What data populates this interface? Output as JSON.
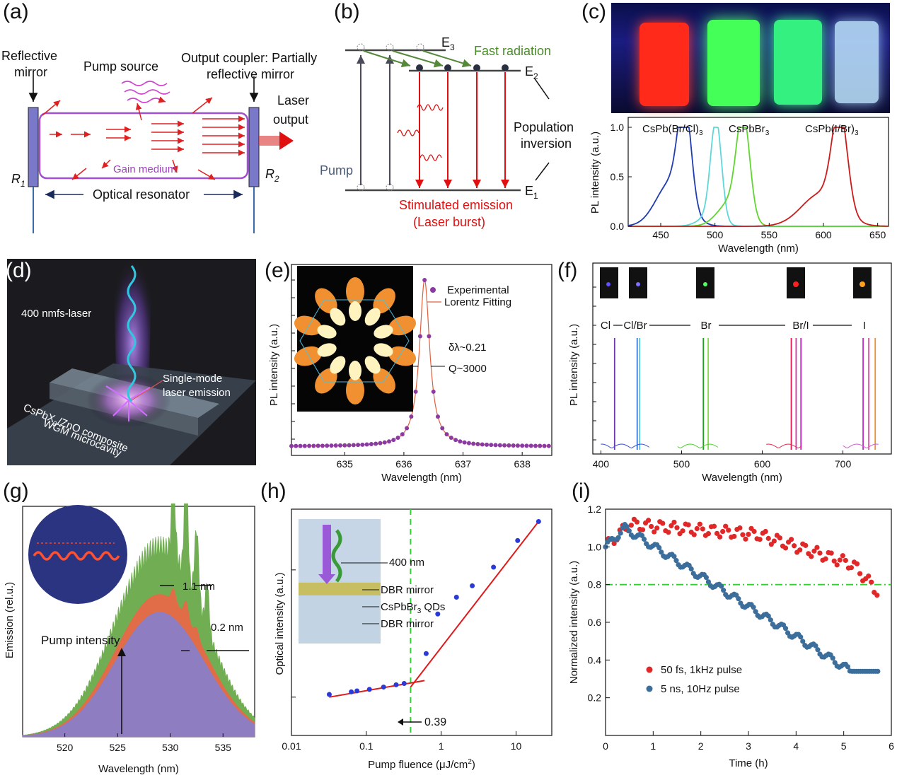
{
  "figure_title": "Perovskite lasing figure panels (a)-(i)",
  "panel_labels": {
    "a": "(a)",
    "b": "(b)",
    "c": "(c)",
    "d": "(d)",
    "e": "(e)",
    "f": "(f)",
    "g": "(g)",
    "h": "(h)",
    "i": "(i)"
  },
  "a": {
    "reflective_mirror_1": "Reflective",
    "reflective_mirror_2": "mirror",
    "pump_source": "Pump source",
    "output_coupler_1": "Output coupler: Partially",
    "output_coupler_2": "reflective mirror",
    "laser_1": "Laser",
    "laser_2": "output",
    "gain_medium": "Gain medium",
    "r1": "R",
    "r1_sub": "1",
    "r2": "R",
    "r2_sub": "2",
    "resonator": "Optical resonator"
  },
  "b": {
    "e3": "E",
    "e3_sub": "3",
    "e2": "E",
    "e2_sub": "2",
    "e1": "E",
    "e1_sub": "1",
    "fast_radiation": "Fast radiation",
    "pump": "Pump",
    "population_1": "Population",
    "population_2": "inversion",
    "stimulated_1": "Stimulated emission",
    "stimulated_2": "(Laser burst)"
  },
  "c": {
    "xlabel": "Wavelength (nm)",
    "ylabel": "PL intensity (a.u.)",
    "label_cl": "CsPb(Br/Cl)",
    "label_br": "CsPbBr",
    "label_i": "CsPb(I/Br)",
    "sub3": "3",
    "vial_colors": [
      "#ff2a1a",
      "#43ff58",
      "#33f080",
      "#bfe6ff"
    ]
  },
  "d": {
    "laser_label": "400 nmfs-laser",
    "single_mode_1": "Single-mode",
    "single_mode_2": "laser emission",
    "composite_1": "CsPbX",
    "composite_sub": "3",
    "composite_2": "/ZnO composite",
    "wgm": "WGM microcavity"
  },
  "e": {
    "legend_exp": "Experimental",
    "legend_fit": "Lorentz Fitting",
    "delta_lambda": "δλ~0.21",
    "q_factor": "Q~3000",
    "xlabel": "Wavelength (nm)",
    "ylabel": "PL intensity (a.u.)"
  },
  "f": {
    "labels": [
      "Cl",
      "Cl/Br",
      "Br",
      "Br/I",
      "I"
    ],
    "xlabel": "Wavelength (nm)",
    "ylabel": "PL intensity (a.u.)"
  },
  "g": {
    "ann_1": "1.1 nm",
    "ann_2": "0.2 nm",
    "pump_intensity": "Pump intensity",
    "xlabel": "Wavelength (nm)",
    "ylabel": "Emission (rel.u.)"
  },
  "h": {
    "ann_400": "400 nm",
    "dbr_top": "DBR mirror",
    "qds": "CsPbBr",
    "qds_sub": "3",
    "qds_tail": " QDs",
    "dbr_bottom": "DBR mirror",
    "threshold": "0.39",
    "xlabel": "Pump fluence (μJ/cm",
    "xlabel_sup": "2",
    "xlabel_end": ")",
    "ylabel": "Optical intensity (a.u.)"
  },
  "i": {
    "legend_red": "50 fs, 1kHz pulse",
    "legend_blue": "5 ns, 10Hz pulse",
    "xlabel": "Time (h)",
    "ylabel": "Normalized intensity (a.u.)"
  },
  "chart_data": [
    {
      "id": "c",
      "type": "line",
      "xlabel": "Wavelength (nm)",
      "ylabel": "PL intensity (a.u.)",
      "xlim": [
        420,
        660
      ],
      "ylim": [
        0,
        1.1
      ],
      "xticks": [
        450,
        500,
        550,
        600,
        650
      ],
      "yticks": [
        0.0,
        0.5,
        1.0
      ],
      "series": [
        {
          "name": "CsPb(Br/Cl)3",
          "color": "#1f3cb0",
          "peak": 472,
          "width": 6,
          "shoulder": [
            460,
            0.45,
            14
          ]
        },
        {
          "name": "CsPbBr3-cyan",
          "color": "#5fd7d8",
          "peak": 501,
          "width": 5,
          "shoulder": [
            495,
            0.1,
            10
          ]
        },
        {
          "name": "CsPbBr3",
          "color": "#5fd630",
          "peak": 526,
          "width": 6,
          "shoulder": [
            515,
            0.25,
            12
          ]
        },
        {
          "name": "CsPb(I/Br)3",
          "color": "#cc1b1b",
          "peak": 615,
          "width": 7,
          "shoulder": [
            598,
            0.33,
            18
          ]
        }
      ]
    },
    {
      "id": "e",
      "type": "scatter",
      "xlabel": "Wavelength (nm)",
      "ylabel": "PL intensity (a.u.)",
      "xlim": [
        634.1,
        638.5
      ],
      "ylim": [
        0,
        1.05
      ],
      "xticks": [
        635,
        636,
        637,
        638
      ],
      "lorentz": {
        "center": 636.35,
        "fwhm": 0.21,
        "baseline": 0.02
      }
    },
    {
      "id": "f",
      "type": "line",
      "xlabel": "Wavelength (nm)",
      "ylabel": "PL intensity (a.u.)",
      "xlim": [
        390,
        760
      ],
      "xticks": [
        400,
        500,
        600,
        700
      ],
      "lines": [
        {
          "x": 417,
          "color": "#6a3ab0"
        },
        {
          "x": 445,
          "color": "#3a7ad0"
        },
        {
          "x": 448,
          "color": "#55c7e0"
        },
        {
          "x": 527,
          "color": "#20a020"
        },
        {
          "x": 533,
          "color": "#80e040"
        },
        {
          "x": 636,
          "color": "#e01a50"
        },
        {
          "x": 642,
          "color": "#d830a8"
        },
        {
          "x": 648,
          "color": "#c020c0"
        },
        {
          "x": 725,
          "color": "#c030c0"
        },
        {
          "x": 732,
          "color": "#e050a0"
        },
        {
          "x": 740,
          "color": "#f09030"
        }
      ]
    },
    {
      "id": "g",
      "type": "area",
      "xlabel": "Wavelength (nm)",
      "ylabel": "Emission (rel.u.)",
      "xlim": [
        516,
        538
      ],
      "xticks": [
        520,
        525,
        530,
        535
      ],
      "series": [
        {
          "name": "high",
          "color": "#6aaa4a"
        },
        {
          "name": "mid",
          "color": "#e86a48"
        },
        {
          "name": "low",
          "color": "#8a7ec8"
        }
      ]
    },
    {
      "id": "h",
      "type": "scatter",
      "xlabel": "Pump fluence (μJ/cm2)",
      "ylabel": "Optical intensity (a.u.)",
      "xscale": "log",
      "yscale": "log",
      "xlim": [
        0.01,
        30
      ],
      "ylim": [
        0.5,
        30
      ],
      "xticks": [
        0.01,
        0.1,
        1,
        10
      ],
      "threshold": 0.39,
      "points": [
        [
          0.032,
          1.05
        ],
        [
          0.063,
          1.1
        ],
        [
          0.075,
          1.12
        ],
        [
          0.11,
          1.15
        ],
        [
          0.17,
          1.2
        ],
        [
          0.25,
          1.25
        ],
        [
          0.32,
          1.28
        ],
        [
          0.63,
          2.2
        ],
        [
          0.9,
          4.5
        ],
        [
          1.6,
          6.1
        ],
        [
          2.6,
          7.5
        ],
        [
          5.0,
          10.5
        ],
        [
          10.5,
          17
        ],
        [
          20,
          24
        ]
      ],
      "fit_low": [
        [
          0.032,
          1.0
        ],
        [
          0.6,
          1.35
        ]
      ],
      "fit_high": [
        [
          0.39,
          1.2
        ],
        [
          20,
          24
        ]
      ]
    },
    {
      "id": "i",
      "type": "scatter",
      "xlabel": "Time (h)",
      "ylabel": "Normalized intensity (a.u.)",
      "xlim": [
        0,
        6
      ],
      "ylim": [
        0.0,
        1.2
      ],
      "xticks": [
        0,
        1,
        2,
        3,
        4,
        5,
        6
      ],
      "yticks": [
        0.2,
        0.4,
        0.6,
        0.8,
        1.0,
        1.2
      ],
      "reference_line": 0.8,
      "series": [
        {
          "name": "50 fs, 1kHz pulse",
          "color": "#e02828"
        },
        {
          "name": "5 ns, 10Hz pulse",
          "color": "#3c6e9c"
        }
      ]
    }
  ]
}
